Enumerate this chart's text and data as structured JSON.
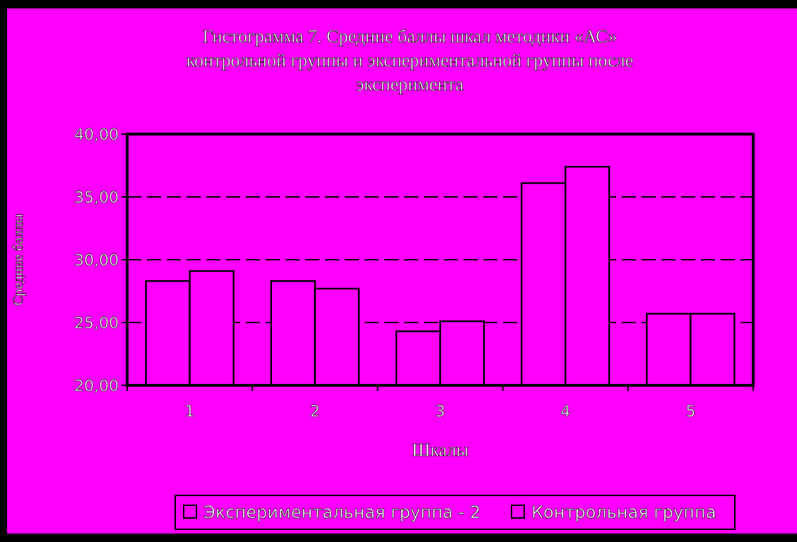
{
  "chart_data": {
    "type": "bar",
    "title": "Гистограмма 7. Средние баллы шкал методики «АС» контрольной группы и экспериментальной группы после эксперимента",
    "xlabel": "Шкалы",
    "ylabel": "Средние баллы",
    "categories": [
      "1",
      "2",
      "3",
      "4",
      "5"
    ],
    "series": [
      {
        "name": "Экспериментальная группа - 2",
        "color": "#ff00ff",
        "values": [
          28.3,
          28.3,
          24.3,
          36.1,
          25.7
        ]
      },
      {
        "name": "Контрольная группа",
        "color": "#ff00ff",
        "values": [
          29.1,
          27.7,
          25.1,
          37.4,
          25.7
        ]
      }
    ],
    "ylim": [
      20,
      40
    ],
    "yticks": [
      {
        "value": 20,
        "label": "20,00"
      },
      {
        "value": 25,
        "label": "25,00"
      },
      {
        "value": 30,
        "label": "30,00"
      },
      {
        "value": 35,
        "label": "35,00"
      },
      {
        "value": 40,
        "label": "40,00"
      }
    ],
    "grid": "y",
    "legend": "bottom"
  }
}
